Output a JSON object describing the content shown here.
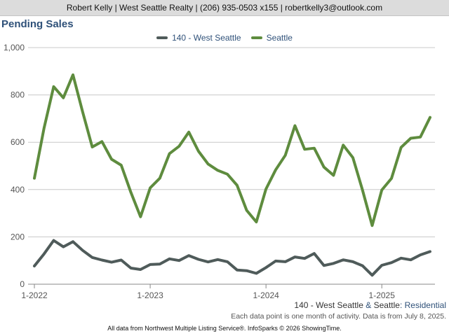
{
  "header": {
    "contact": "Robert Kelly | West Seattle Realty | (206) 935-0503 x155 | robertkelly3@outlook.com"
  },
  "chart_data": {
    "type": "line",
    "title": "Pending Sales",
    "xlabel": "",
    "ylabel": "",
    "ylim": [
      0,
      1000
    ],
    "yticks": [
      "0",
      "200",
      "400",
      "600",
      "800",
      "1,000"
    ],
    "xticks": [
      {
        "label": "1-2022",
        "index": 0
      },
      {
        "label": "1-2023",
        "index": 12
      },
      {
        "label": "1-2024",
        "index": 24
      },
      {
        "label": "1-2025",
        "index": 36
      }
    ],
    "grid": true,
    "legend_position": "top-center",
    "x": [
      "1-2022",
      "2-2022",
      "3-2022",
      "4-2022",
      "5-2022",
      "6-2022",
      "7-2022",
      "8-2022",
      "9-2022",
      "10-2022",
      "11-2022",
      "12-2022",
      "1-2023",
      "2-2023",
      "3-2023",
      "4-2023",
      "5-2023",
      "6-2023",
      "7-2023",
      "8-2023",
      "9-2023",
      "10-2023",
      "11-2023",
      "12-2023",
      "1-2024",
      "2-2024",
      "3-2024",
      "4-2024",
      "5-2024",
      "6-2024",
      "7-2024",
      "8-2024",
      "9-2024",
      "10-2024",
      "11-2024",
      "12-2024",
      "1-2025",
      "2-2025",
      "3-2025",
      "4-2025",
      "5-2025",
      "6-2025"
    ],
    "series": [
      {
        "name": "140 - West Seattle",
        "color": "#4f5b5a",
        "values": [
          77,
          128,
          185,
          158,
          180,
          143,
          113,
          102,
          93,
          102,
          68,
          62,
          83,
          85,
          107,
          100,
          121,
          105,
          94,
          104,
          95,
          60,
          57,
          46,
          70,
          98,
          95,
          115,
          109,
          130,
          79,
          88,
          103,
          95,
          78,
          38,
          80,
          91,
          110,
          103,
          124,
          138
        ]
      },
      {
        "name": "Seattle",
        "color": "#5e8c3e",
        "values": [
          448,
          660,
          835,
          788,
          885,
          728,
          580,
          603,
          528,
          503,
          388,
          285,
          407,
          448,
          552,
          583,
          643,
          562,
          508,
          481,
          465,
          418,
          312,
          263,
          402,
          483,
          545,
          670,
          570,
          575,
          495,
          460,
          588,
          535,
          398,
          248,
          398,
          447,
          578,
          617,
          622,
          705
        ]
      }
    ],
    "caption_series": "140 - West Seattle",
    "caption_amp": "&",
    "caption_market": "Seattle",
    "caption_type": ": Residential"
  },
  "note": "Each data point is one month of activity. Data is from July 8, 2025.",
  "footer": "All data from Northwest Multiple Listing Service®. InfoSparks © 2026 ShowingTime."
}
